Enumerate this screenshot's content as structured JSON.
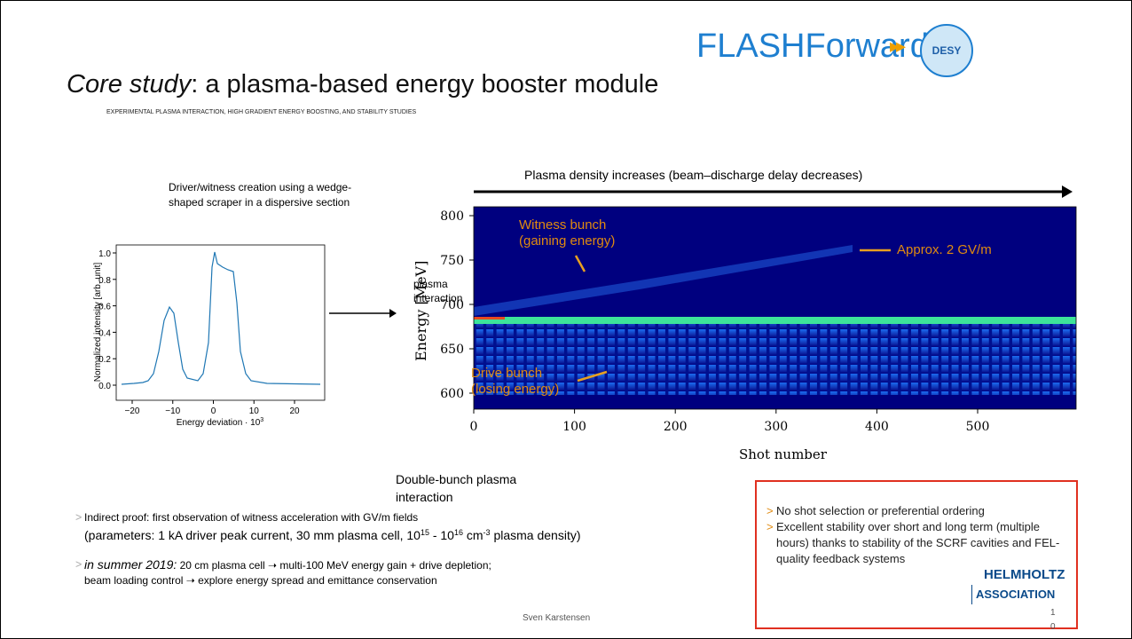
{
  "header": {
    "brand": "FLASHForward",
    "logo": "DESY",
    "title_em": "Core study",
    "title_rest": ": a plasma-based energy booster module",
    "subtitle": "EXPERIMENTAL PLASMA INTERACTION, HIGH GRADIENT ENERGY BOOSTING, AND STABILITY STUDIES"
  },
  "left_figure": {
    "caption": "Driver/witness creation using a wedge-shaped scraper in a dispersive section",
    "ylabel": "Normalized intensity [arb. unit]",
    "xlabel": "Energy deviation · 10",
    "xlabel_sup": "3",
    "yticks": [
      "0.0",
      "0.2",
      "0.4",
      "0.6",
      "0.8",
      "1.0"
    ],
    "xticks": [
      "−20",
      "−10",
      "0",
      "10",
      "20"
    ]
  },
  "right_figure": {
    "header": "Plasma density increases (beam–discharge delay decreases)",
    "ylabel": "Energy [MeV]",
    "xlabel": "Shot number",
    "yticks": [
      "800",
      "750",
      "700",
      "650",
      "600"
    ],
    "xticks": [
      "0",
      "100",
      "200",
      "300",
      "400",
      "500"
    ],
    "witness": "Witness bunch",
    "witness_note": "(gaining energy)",
    "gradient": "Approx. 2 GV/m",
    "drive": "Drive bunch",
    "drive_note": "(losing energy)",
    "overlay": "plasma interaction",
    "caption": "Double-bunch plasma interaction"
  },
  "bullets": [
    {
      "parts": [
        "Indirect proof: first observation of witness acceleration with GV/m fields"
      ],
      "line2": [
        "(parameters: 1 kA driver peak current, 30 mm plasma cell, 10",
        "15",
        " - 10",
        "16",
        " cm",
        "-3",
        " plasma density)"
      ]
    },
    {
      "parts": [
        "in summer 2019:",
        " 20 cm plasma cell ➝ multi-100 MeV energy gain + drive depletion;"
      ],
      "line2": [
        "beam loading control ➝ explore energy spread and emittance conservation"
      ]
    }
  ],
  "box": [
    "No shot selection or preferential ordering",
    "Excellent stability over short and long term (multiple hours) thanks to stability of the SCRF cavities and FEL-quality feedback systems"
  ],
  "footer": {
    "author": "Sven Karstensen",
    "page": [
      "1",
      "0"
    ],
    "helmholtz": [
      "HELMHOLTZ",
      "ASSOCIATION"
    ]
  }
}
